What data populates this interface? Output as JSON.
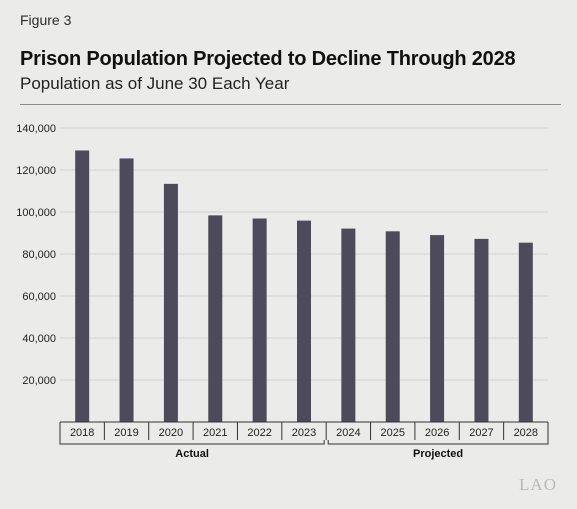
{
  "figure_label": "Figure 3",
  "title": "Prison Population Projected to Decline Through 2028",
  "subtitle": "Population as of June 30 Each Year",
  "logo": "LAO",
  "colors": {
    "bar": "#4d4a5c",
    "grid": "#d0d0cf",
    "axis": "#333333",
    "background": "#ebebea"
  },
  "chart_data": {
    "type": "bar",
    "categories": [
      "2018",
      "2019",
      "2020",
      "2021",
      "2022",
      "2023",
      "2024",
      "2025",
      "2026",
      "2027",
      "2028"
    ],
    "values": [
      129300,
      125500,
      113400,
      98400,
      96900,
      95900,
      92100,
      90800,
      89000,
      87200,
      85400
    ],
    "ylim": [
      0,
      140000
    ],
    "yticks": [
      20000,
      40000,
      60000,
      80000,
      100000,
      120000,
      140000
    ],
    "ytick_labels": [
      "20,000",
      "40,000",
      "60,000",
      "80,000",
      "100,000",
      "120,000",
      "140,000"
    ],
    "grid": true,
    "groups": [
      {
        "label": "Actual",
        "categories": [
          "2018",
          "2019",
          "2020",
          "2021",
          "2022",
          "2023"
        ]
      },
      {
        "label": "Projected",
        "categories": [
          "2024",
          "2025",
          "2026",
          "2027",
          "2028"
        ]
      }
    ]
  }
}
